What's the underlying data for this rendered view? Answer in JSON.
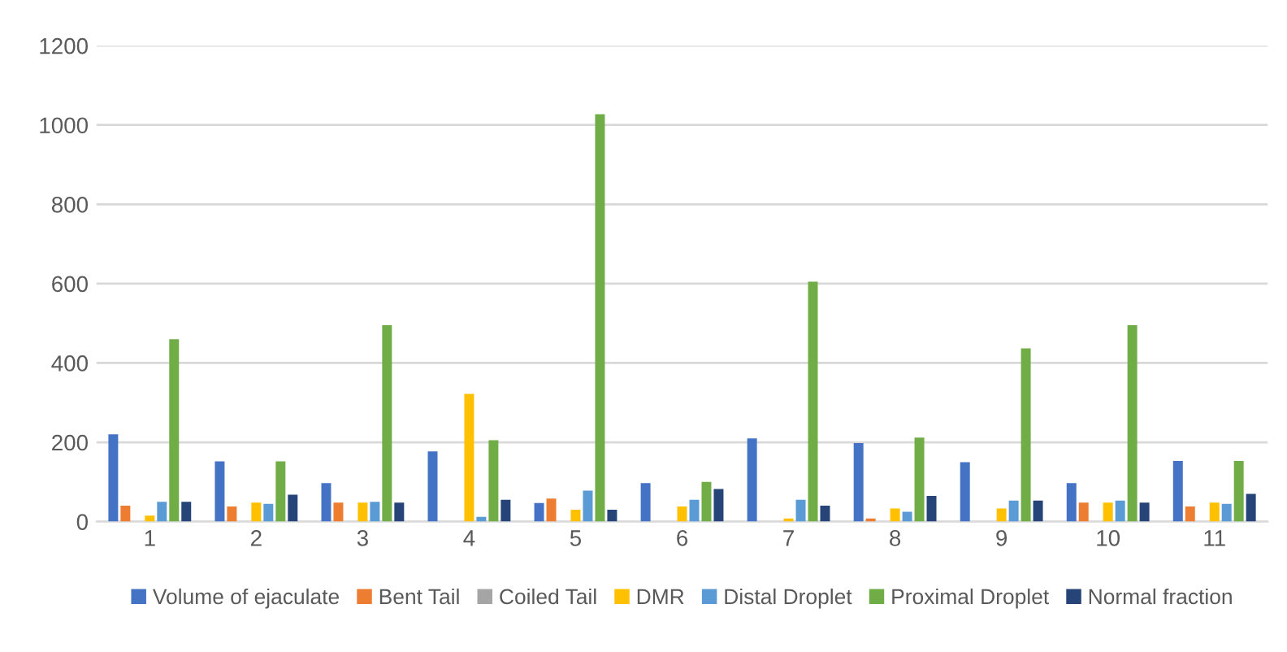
{
  "chart_data": {
    "type": "bar",
    "categories": [
      "1",
      "2",
      "3",
      "4",
      "5",
      "6",
      "7",
      "8",
      "9",
      "10",
      "11"
    ],
    "series": [
      {
        "name": "Volume of ejaculate",
        "color": "#4472c4",
        "values": [
          220,
          152,
          97,
          177,
          47,
          97,
          210,
          198,
          150,
          97,
          153
        ]
      },
      {
        "name": "Bent Tail",
        "color": "#ed7d31",
        "values": [
          40,
          38,
          48,
          0,
          58,
          0,
          0,
          8,
          0,
          48,
          38
        ]
      },
      {
        "name": "Coiled Tail",
        "color": "#a5a5a5",
        "values": [
          0,
          0,
          0,
          0,
          0,
          0,
          0,
          0,
          0,
          0,
          0
        ]
      },
      {
        "name": "DMR",
        "color": "#ffc000",
        "values": [
          15,
          48,
          48,
          322,
          30,
          38,
          8,
          33,
          33,
          48,
          48
        ]
      },
      {
        "name": "Distal Droplet",
        "color": "#5b9bd5",
        "values": [
          50,
          45,
          50,
          12,
          78,
          55,
          55,
          25,
          53,
          53,
          45
        ]
      },
      {
        "name": "Proximal Droplet",
        "color": "#70ad47",
        "values": [
          460,
          152,
          495,
          205,
          1027,
          100,
          605,
          212,
          437,
          495,
          153
        ]
      },
      {
        "name": "Normal fraction",
        "color": "#264478",
        "values": [
          50,
          68,
          48,
          55,
          30,
          82,
          40,
          65,
          53,
          48,
          70
        ]
      }
    ],
    "ylim": [
      0,
      1200
    ],
    "yticks": [
      0,
      200,
      400,
      600,
      800,
      1000,
      1200
    ],
    "grid": "y",
    "legend": "bottom"
  }
}
